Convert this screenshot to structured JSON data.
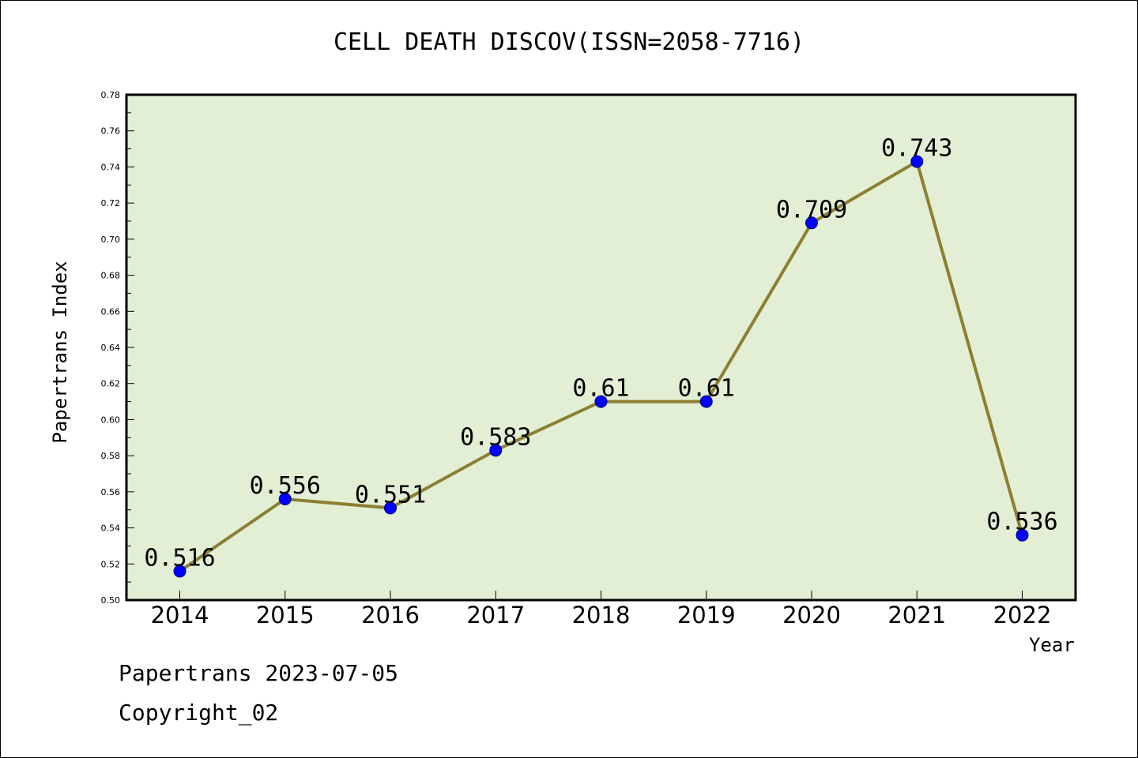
{
  "title": "CELL DEATH DISCOV(ISSN=2058-7716)",
  "footer": {
    "line1": "Papertrans 2023-07-05",
    "line2": "Copyright_02"
  },
  "colors": {
    "plot_bg": "#e2efd5",
    "line": "#8c7f32",
    "marker": "#0000ff"
  },
  "chart_data": {
    "type": "line",
    "title": "CELL DEATH DISCOV(ISSN=2058-7716)",
    "xlabel": "Year",
    "ylabel": "Papertrans Index",
    "categories": [
      "2014",
      "2015",
      "2016",
      "2017",
      "2018",
      "2019",
      "2020",
      "2021",
      "2022"
    ],
    "values": [
      0.516,
      0.556,
      0.551,
      0.583,
      0.61,
      0.61,
      0.709,
      0.743,
      0.536
    ],
    "data_labels": [
      "0.516",
      "0.556",
      "0.551",
      "0.583",
      "0.61",
      "0.61",
      "0.709",
      "0.743",
      "0.536"
    ],
    "ylim": [
      0.5,
      0.78
    ],
    "yticks": [
      "0.50",
      "0.52",
      "0.54",
      "0.56",
      "0.58",
      "0.60",
      "0.62",
      "0.64",
      "0.66",
      "0.68",
      "0.70",
      "0.72",
      "0.74",
      "0.76",
      "0.78"
    ],
    "grid": false,
    "legend": "none"
  }
}
